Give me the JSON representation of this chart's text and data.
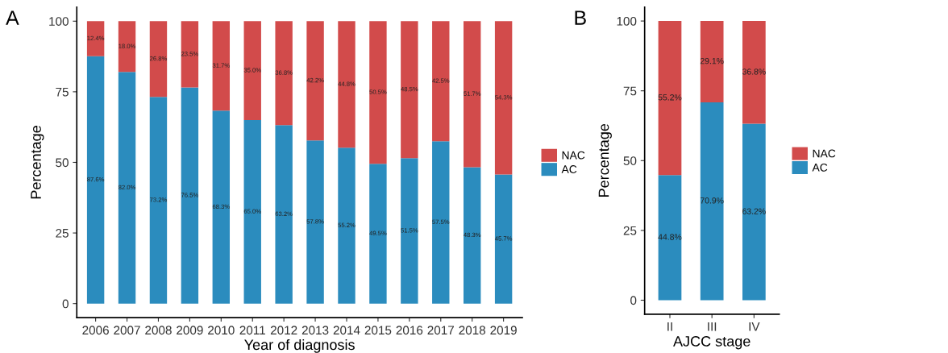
{
  "chart_data": [
    {
      "type": "bar",
      "stacked": true,
      "xlabel": "Year of diagnosis",
      "ylabel": "Percentage",
      "annotations": [
        "A"
      ],
      "categories": [
        "2006",
        "2007",
        "2008",
        "2009",
        "2010",
        "2011",
        "2012",
        "2013",
        "2014",
        "2015",
        "2016",
        "2017",
        "2018",
        "2019"
      ],
      "series": [
        {
          "name": "AC",
          "color": "#2b8cbe",
          "values": [
            87.6,
            82.0,
            73.2,
            76.5,
            68.3,
            65.0,
            63.2,
            57.8,
            55.2,
            49.5,
            51.5,
            57.5,
            48.3,
            45.7
          ],
          "value_labels": [
            "87.6%",
            "82.0%",
            "73.2%",
            "76.5%",
            "68.3%",
            "65.0%",
            "63.2%",
            "57.8%",
            "55.2%",
            "49.5%",
            "51.5%",
            "57.5%",
            "48.3%",
            "45.7%"
          ]
        },
        {
          "name": "NAC",
          "color": "#d24b4b",
          "values": [
            12.4,
            18.0,
            26.8,
            23.5,
            31.7,
            35.0,
            36.8,
            42.2,
            44.8,
            50.5,
            48.5,
            42.5,
            51.7,
            54.3
          ],
          "value_labels": [
            "12.4%",
            "18.0%",
            "26.8%",
            "23.5%",
            "31.7%",
            "35.0%",
            "36.8%",
            "42.2%",
            "44.8%",
            "50.5%",
            "48.5%",
            "42.5%",
            "51.7%",
            "54.3%"
          ]
        }
      ],
      "ylim": [
        -5,
        105
      ],
      "yticks": [
        0,
        25,
        50,
        75,
        100
      ],
      "grid": false,
      "legend": "right"
    },
    {
      "type": "bar",
      "stacked": true,
      "xlabel": "AJCC stage",
      "ylabel": "Percentage",
      "annotations": [
        "B"
      ],
      "categories": [
        "II",
        "III",
        "IV"
      ],
      "series": [
        {
          "name": "AC",
          "color": "#2b8cbe",
          "values": [
            44.8,
            70.9,
            63.2
          ],
          "value_labels": [
            "44.8%",
            "70.9%",
            "63.2%"
          ]
        },
        {
          "name": "NAC",
          "color": "#d24b4b",
          "values": [
            55.2,
            29.1,
            36.8
          ],
          "value_labels": [
            "55.2%",
            "29.1%",
            "36.8%"
          ]
        }
      ],
      "ylim": [
        -5,
        105
      ],
      "yticks": [
        0,
        25,
        50,
        75,
        100
      ],
      "grid": false,
      "legend": "right"
    }
  ]
}
